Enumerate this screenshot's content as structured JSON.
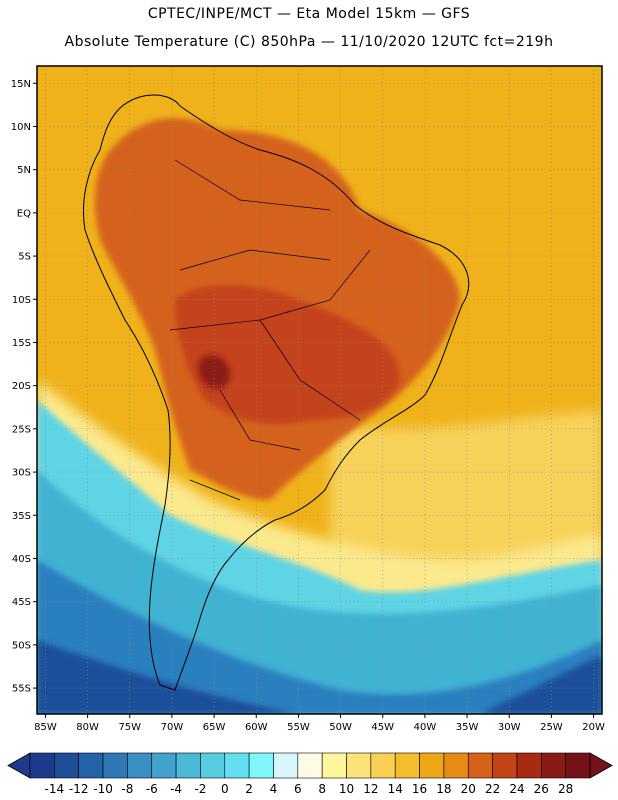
{
  "title_line1": "CPTEC/INPE/MCT —  Eta Model 15km — GFS",
  "title_line2": "Absolute Temperature (C) 850hPa — 11/10/2020 12UTC fct=219h",
  "lat_labels": [
    "15N",
    "10N",
    "5N",
    "EQ",
    "5S",
    "10S",
    "15S",
    "20S",
    "25S",
    "30S",
    "35S",
    "40S",
    "45S",
    "50S",
    "55S"
  ],
  "lon_labels": [
    "85W",
    "80W",
    "75W",
    "70W",
    "65W",
    "60W",
    "55W",
    "50W",
    "45W",
    "40W",
    "35W",
    "30W",
    "25W",
    "20W"
  ],
  "map": {
    "lon_range": [
      -86,
      -19
    ],
    "lat_range": [
      -58,
      17
    ],
    "colors": {
      "ocean_warm": "#efb21a",
      "land_hot": "#d5621a",
      "land_hotter": "#c4421a",
      "core": "#8e1a14",
      "cool_yellow": "#fbe98e",
      "cold_cyan": "#5fd4e5",
      "cold_teal": "#3fb3d3",
      "cold_blue": "#2a7fbf",
      "cold_deep": "#1e4f9a",
      "coast": "#000000"
    }
  },
  "colorbar": {
    "labels": [
      "-14",
      "-12",
      "-10",
      "-8",
      "-6",
      "-4",
      "-2",
      "0",
      "2",
      "4",
      "6",
      "8",
      "10",
      "12",
      "14",
      "16",
      "18",
      "20",
      "22",
      "24",
      "26",
      "28"
    ],
    "colors": [
      "#1e3a8a",
      "#1f4e98",
      "#2563a8",
      "#2f78b6",
      "#3a8fc3",
      "#41a3cc",
      "#4ab8d6",
      "#58cde2",
      "#62dff0",
      "#7ff7fc",
      "#d8f7fd",
      "#fefae6",
      "#fef79e",
      "#fde27a",
      "#f9cf54",
      "#f3bd2c",
      "#eda815",
      "#e88a17",
      "#d6621a",
      "#c24316",
      "#a82a12",
      "#8a1b14",
      "#74121a"
    ]
  }
}
